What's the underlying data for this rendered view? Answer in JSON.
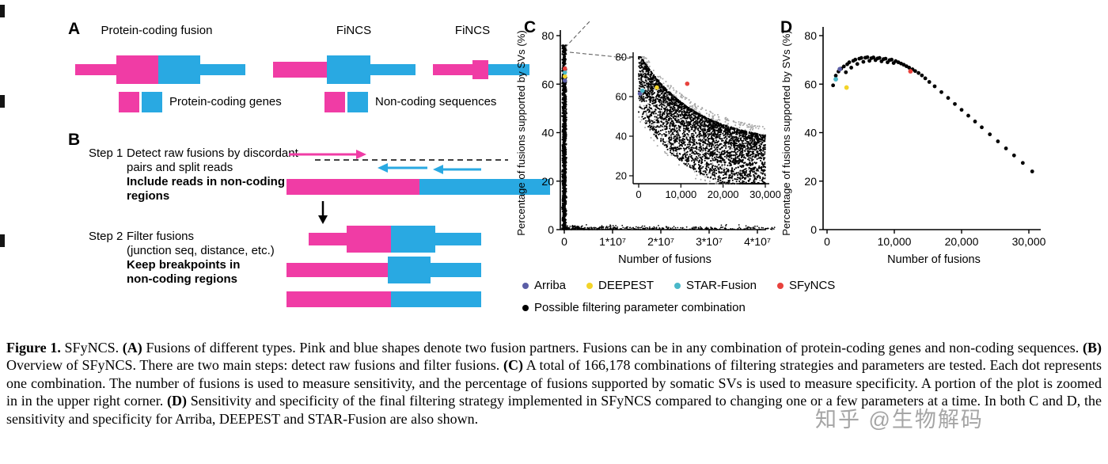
{
  "colors": {
    "pink": "#f03ca5",
    "blue": "#29a9e2",
    "black": "#000000"
  },
  "panelA": {
    "label": "A",
    "shape_captions": [
      "Protein-coding fusion",
      "FiNCS",
      "FiNCS"
    ],
    "legend": [
      {
        "label": "Protein-coding genes"
      },
      {
        "label": "Non-coding sequences"
      }
    ]
  },
  "panelB": {
    "label": "B",
    "step1": {
      "title": "Step 1",
      "normal_lines": [
        "Detect raw fusions by discordant",
        "pairs and split reads"
      ],
      "bold_lines": [
        "Include reads in non-coding",
        "regions"
      ]
    },
    "step2": {
      "title": "Step 2",
      "normal_lines": [
        "Filter fusions",
        "(junction seq, distance, etc.)"
      ],
      "bold_lines": [
        "Keep breakpoints in",
        "non-coding regions"
      ]
    }
  },
  "panelC": {
    "label": "C"
  },
  "panelD": {
    "label": "D"
  },
  "legendC": {
    "items": [
      {
        "label": "Arriba",
        "color": "#5b5ea6"
      },
      {
        "label": "DEEPEST",
        "color": "#f3d429"
      },
      {
        "label": "STAR-Fusion",
        "color": "#4ab8c9"
      },
      {
        "label": "SFyNCS",
        "color": "#e8423d"
      }
    ],
    "row2": {
      "label": "Possible filtering parameter combination",
      "color": "#000000"
    }
  },
  "caption": {
    "segments": [
      {
        "text": "Figure 1.",
        "bold": true
      },
      {
        "text": " SFyNCS. ",
        "bold": false
      },
      {
        "text": "(A)",
        "bold": true
      },
      {
        "text": " Fusions of different types. Pink and blue shapes denote two fusion partners. Fusions can be in any combination of protein-coding genes and non-coding sequences. ",
        "bold": false
      },
      {
        "text": "(B)",
        "bold": true
      },
      {
        "text": " Overview of SFyNCS. There are two main steps: detect raw fusions and filter fusions. ",
        "bold": false
      },
      {
        "text": "(C)",
        "bold": true
      },
      {
        "text": " A total of 166,178 combinations of filtering strategies and parameters are tested. Each dot represents one combination. The number of fusions is used to measure sensitivity, and the percentage of fusions supported by somatic SVs is used to measure specificity. A portion of the plot is zoomed in in the upper right corner. ",
        "bold": false
      },
      {
        "text": "(D)",
        "bold": true
      },
      {
        "text": " Sensitivity and specificity of the final filtering strategy implemented in SFyNCS compared to changing one or a few parameters at a time. In both C and D, the sensitivity and specificity for Arriba, DEEPEST and STAR-Fusion are also shown.",
        "bold": false
      }
    ]
  },
  "watermark": "知乎 @生物解码",
  "chart_data": [
    {
      "id": "C",
      "type": "scatter",
      "xlabel": "Number of fusions",
      "ylabel": "Percentage of fusions supported by SVs (%)",
      "xlim": [
        0,
        46000000
      ],
      "ylim": [
        0,
        80
      ],
      "xticks": [
        {
          "v": 0,
          "label": "0"
        },
        {
          "v": 10000000,
          "label": "1*10⁷"
        },
        {
          "v": 20000000,
          "label": "2*10⁷"
        },
        {
          "v": 30000000,
          "label": "3*10⁷"
        },
        {
          "v": 40000000,
          "label": "4*10⁷"
        }
      ],
      "yticks": [
        {
          "v": 0,
          "label": "0"
        },
        {
          "v": 20,
          "label": "20"
        },
        {
          "v": 40,
          "label": "40"
        },
        {
          "v": 60,
          "label": "60"
        },
        {
          "v": 80,
          "label": "80"
        }
      ],
      "series": [
        {
          "name": "Possible filtering parameter combination",
          "color": "#000000",
          "desc": "166,178 filtering-parameter combinations: dense vertical strip at x≈0 spanning y≈0–76%, sparse tail along y≈0 out to x≈4.4*10⁷"
        }
      ],
      "tool_points": [
        {
          "name": "Arriba",
          "x": 120000,
          "y": 61.5,
          "color": "#5b5ea6"
        },
        {
          "name": "DEEPEST",
          "x": 120000,
          "y": 63.2,
          "color": "#f3d429"
        },
        {
          "name": "STAR-Fusion",
          "x": 120000,
          "y": 64.8,
          "color": "#4ab8c9"
        },
        {
          "name": "SFyNCS",
          "x": 120000,
          "y": 66.4,
          "color": "#e8423d"
        }
      ],
      "sim": {
        "strip_n": 1100,
        "strip_ymax": 76,
        "tail_n": 400,
        "seed": 7
      },
      "inset": {
        "xlim": [
          0,
          31000
        ],
        "ylim": [
          16,
          82
        ],
        "xticks": [
          {
            "v": 0,
            "label": "0"
          },
          {
            "v": 10000,
            "label": "10,000"
          },
          {
            "v": 20000,
            "label": "20,000"
          },
          {
            "v": 30000,
            "label": "30,000"
          }
        ],
        "yticks": [
          {
            "v": 20,
            "label": "20"
          },
          {
            "v": 40,
            "label": "40"
          },
          {
            "v": 60,
            "label": "60"
          },
          {
            "v": 80,
            "label": "80"
          }
        ],
        "trend": "cloud decays from ≈60–80% at x≈0 to ≈18–40% at x≈30,000; y ≈ 28 + 46*exp(-x/13000) with downward spread",
        "sim": {
          "n": 3200,
          "halo_n": 700,
          "seed": 11
        },
        "tool_points": [
          {
            "name": "Arriba",
            "x": 300,
            "y": 61.5,
            "color": "#5b5ea6"
          },
          {
            "name": "STAR-Fusion",
            "x": 900,
            "y": 63.0,
            "color": "#4ab8c9"
          },
          {
            "name": "DEEPEST",
            "x": 4300,
            "y": 64.6,
            "color": "#f3d429"
          },
          {
            "name": "SFyNCS",
            "x": 11500,
            "y": 66.5,
            "color": "#e8423d"
          }
        ]
      }
    },
    {
      "id": "D",
      "type": "scatter",
      "xlabel": "Number of fusions",
      "ylabel": "Percentage of fusions supported by SVs (%)",
      "xlim": [
        0,
        32000
      ],
      "ylim": [
        0,
        80
      ],
      "xticks": [
        {
          "v": 0,
          "label": "0"
        },
        {
          "v": 10000,
          "label": "10,000"
        },
        {
          "v": 20000,
          "label": "20,000"
        },
        {
          "v": 30000,
          "label": "30,000"
        }
      ],
      "yticks": [
        {
          "v": 0,
          "label": "0"
        },
        {
          "v": 20,
          "label": "20"
        },
        {
          "v": 40,
          "label": "40"
        },
        {
          "v": 60,
          "label": "60"
        },
        {
          "v": 80,
          "label": "80"
        }
      ],
      "points": [
        [
          900,
          59.5
        ],
        [
          1300,
          63.5
        ],
        [
          1700,
          65.2
        ],
        [
          2100,
          66.4
        ],
        [
          2500,
          67.3
        ],
        [
          2800,
          64.9
        ],
        [
          3000,
          68.2
        ],
        [
          3300,
          69
        ],
        [
          3600,
          66.8
        ],
        [
          3900,
          69.6
        ],
        [
          4200,
          70.1
        ],
        [
          4500,
          68.3
        ],
        [
          4800,
          70.5
        ],
        [
          5100,
          70.8
        ],
        [
          5400,
          69.2
        ],
        [
          5700,
          70.9
        ],
        [
          6000,
          71.1
        ],
        [
          6300,
          69.6
        ],
        [
          6600,
          70.7
        ],
        [
          6900,
          71
        ],
        [
          7200,
          69.9
        ],
        [
          7500,
          70.6
        ],
        [
          7800,
          70.8
        ],
        [
          8100,
          69.4
        ],
        [
          8400,
          70.3
        ],
        [
          8700,
          70.5
        ],
        [
          9000,
          69
        ],
        [
          9300,
          69.9
        ],
        [
          9600,
          70.1
        ],
        [
          9900,
          68.7
        ],
        [
          10200,
          69.5
        ],
        [
          10600,
          69
        ],
        [
          11000,
          68.5
        ],
        [
          11400,
          68
        ],
        [
          11800,
          67.4
        ],
        [
          12200,
          66.8
        ],
        [
          12700,
          66.1
        ],
        [
          13100,
          65.4
        ],
        [
          13600,
          64.6
        ],
        [
          14100,
          63.6
        ],
        [
          14600,
          62.4
        ],
        [
          15200,
          60.9
        ],
        [
          16000,
          59.1
        ],
        [
          17000,
          56.7
        ],
        [
          18000,
          54.3
        ],
        [
          19000,
          51.8
        ],
        [
          20000,
          49.4
        ],
        [
          21000,
          47
        ],
        [
          22000,
          44.6
        ],
        [
          23000,
          42.2
        ],
        [
          24200,
          39.3
        ],
        [
          25400,
          36.4
        ],
        [
          26600,
          33.5
        ],
        [
          27800,
          30.6
        ],
        [
          29100,
          27.5
        ],
        [
          30500,
          24
        ]
      ],
      "tool_points": [
        {
          "name": "Arriba",
          "x": 1900,
          "y": 66.2,
          "color": "#5b5ea6"
        },
        {
          "name": "STAR-Fusion",
          "x": 1300,
          "y": 62.0,
          "color": "#4ab8c9"
        },
        {
          "name": "DEEPEST",
          "x": 2900,
          "y": 58.6,
          "color": "#f3d429"
        },
        {
          "name": "SFyNCS",
          "x": 12400,
          "y": 65.3,
          "color": "#e8423d"
        }
      ]
    }
  ]
}
